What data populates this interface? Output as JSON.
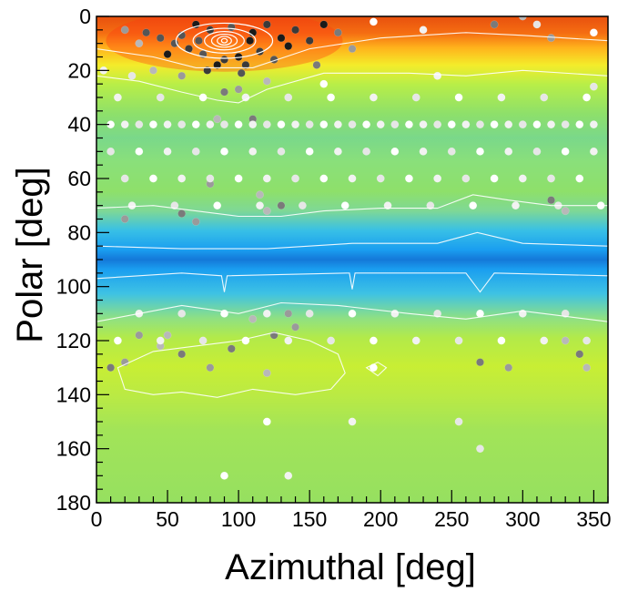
{
  "chart_data": {
    "type": "heatmap",
    "title": "",
    "xlabel": "Azimuthal [deg]",
    "ylabel": "Polar [deg]",
    "xlim": [
      0,
      360
    ],
    "ylim": [
      0,
      180
    ],
    "y_axis_inverted": true,
    "grid": false,
    "legend": "none",
    "x_ticks": [
      0,
      50,
      100,
      150,
      200,
      250,
      300,
      350
    ],
    "y_ticks": [
      0,
      20,
      40,
      60,
      80,
      100,
      120,
      140,
      160,
      180
    ],
    "colormap_bands": [
      {
        "polar_range": [
          0,
          8
        ],
        "level": "highest",
        "color": "#f05a10"
      },
      {
        "polar_range": [
          8,
          20
        ],
        "level": "high",
        "color": "#ffcf1a"
      },
      {
        "polar_range": [
          20,
          72
        ],
        "level": "medium",
        "color": "#8ee06a"
      },
      {
        "polar_range": [
          72,
          112
        ],
        "level": "low",
        "color": "#1aa6ee"
      },
      {
        "polar_range": [
          112,
          150
        ],
        "level": "medium-high",
        "color": "#c6ee3a"
      },
      {
        "polar_range": [
          150,
          180
        ],
        "level": "medium",
        "color": "#9ae25c"
      }
    ],
    "hotspot": {
      "azimuthal": 90,
      "polar": 9
    },
    "scatter_series": [
      {
        "shade": "dark",
        "points": [
          [
            70,
            3
          ],
          [
            80,
            5
          ],
          [
            95,
            4
          ],
          [
            110,
            6
          ],
          [
            120,
            3
          ],
          [
            60,
            7
          ],
          [
            130,
            8
          ],
          [
            65,
            12
          ],
          [
            75,
            14
          ],
          [
            100,
            15
          ],
          [
            115,
            13
          ],
          [
            125,
            16
          ],
          [
            85,
            18
          ],
          [
            105,
            18
          ],
          [
            55,
            10
          ],
          [
            135,
            11
          ],
          [
            140,
            5
          ],
          [
            45,
            8
          ],
          [
            50,
            14
          ],
          [
            150,
            9
          ],
          [
            35,
            6
          ],
          [
            160,
            3
          ],
          [
            90,
            16
          ],
          [
            72,
            9
          ],
          [
            108,
            9
          ],
          [
            78,
            20
          ],
          [
            102,
            21
          ]
        ]
      },
      {
        "shade": "grey",
        "points": [
          [
            20,
            5
          ],
          [
            30,
            10
          ],
          [
            170,
            6
          ],
          [
            180,
            12
          ],
          [
            40,
            20
          ],
          [
            155,
            18
          ],
          [
            60,
            22
          ],
          [
            120,
            24
          ],
          [
            90,
            28
          ],
          [
            100,
            27
          ],
          [
            85,
            38
          ],
          [
            110,
            38
          ],
          [
            80,
            62
          ],
          [
            115,
            66
          ],
          [
            60,
            73
          ],
          [
            70,
            76
          ],
          [
            120,
            72
          ],
          [
            130,
            70
          ],
          [
            20,
            75
          ],
          [
            330,
            72
          ],
          [
            320,
            68
          ],
          [
            30,
            118
          ],
          [
            45,
            122
          ],
          [
            60,
            125
          ],
          [
            20,
            128
          ],
          [
            110,
            112
          ],
          [
            125,
            118
          ],
          [
            140,
            115
          ],
          [
            330,
            120
          ],
          [
            340,
            125
          ],
          [
            80,
            130
          ],
          [
            120,
            132
          ],
          [
            270,
            128
          ],
          [
            290,
            130
          ],
          [
            300,
            0
          ],
          [
            280,
            3
          ],
          [
            320,
            8
          ],
          [
            50,
            118
          ],
          [
            95,
            123
          ],
          [
            135,
            110
          ],
          [
            345,
            130
          ],
          [
            10,
            130
          ]
        ]
      },
      {
        "shade": "white",
        "points": [
          [
            10,
            40
          ],
          [
            20,
            40
          ],
          [
            30,
            40
          ],
          [
            40,
            40
          ],
          [
            50,
            40
          ],
          [
            60,
            40
          ],
          [
            70,
            40
          ],
          [
            80,
            40
          ],
          [
            90,
            40
          ],
          [
            100,
            40
          ],
          [
            110,
            40
          ],
          [
            120,
            40
          ],
          [
            130,
            40
          ],
          [
            140,
            40
          ],
          [
            150,
            40
          ],
          [
            160,
            40
          ],
          [
            170,
            40
          ],
          [
            180,
            40
          ],
          [
            190,
            40
          ],
          [
            200,
            40
          ],
          [
            210,
            40
          ],
          [
            220,
            40
          ],
          [
            230,
            40
          ],
          [
            240,
            40
          ],
          [
            250,
            40
          ],
          [
            260,
            40
          ],
          [
            270,
            40
          ],
          [
            280,
            40
          ],
          [
            290,
            40
          ],
          [
            300,
            40
          ],
          [
            310,
            40
          ],
          [
            320,
            40
          ],
          [
            330,
            40
          ],
          [
            340,
            40
          ],
          [
            350,
            40
          ],
          [
            10,
            50
          ],
          [
            30,
            50
          ],
          [
            50,
            50
          ],
          [
            70,
            50
          ],
          [
            90,
            50
          ],
          [
            110,
            50
          ],
          [
            130,
            50
          ],
          [
            150,
            50
          ],
          [
            170,
            50
          ],
          [
            190,
            50
          ],
          [
            210,
            50
          ],
          [
            230,
            50
          ],
          [
            250,
            50
          ],
          [
            270,
            50
          ],
          [
            290,
            50
          ],
          [
            310,
            50
          ],
          [
            330,
            50
          ],
          [
            350,
            50
          ],
          [
            20,
            60
          ],
          [
            40,
            60
          ],
          [
            60,
            60
          ],
          [
            80,
            60
          ],
          [
            100,
            60
          ],
          [
            120,
            60
          ],
          [
            140,
            60
          ],
          [
            160,
            60
          ],
          [
            180,
            60
          ],
          [
            200,
            60
          ],
          [
            220,
            60
          ],
          [
            240,
            60
          ],
          [
            260,
            60
          ],
          [
            280,
            60
          ],
          [
            300,
            60
          ],
          [
            320,
            60
          ],
          [
            340,
            60
          ],
          [
            15,
            30
          ],
          [
            45,
            30
          ],
          [
            75,
            30
          ],
          [
            105,
            30
          ],
          [
            135,
            30
          ],
          [
            165,
            30
          ],
          [
            195,
            30
          ],
          [
            225,
            30
          ],
          [
            255,
            30
          ],
          [
            285,
            30
          ],
          [
            315,
            30
          ],
          [
            345,
            30
          ],
          [
            25,
            70
          ],
          [
            55,
            70
          ],
          [
            85,
            70
          ],
          [
            115,
            70
          ],
          [
            145,
            70
          ],
          [
            175,
            70
          ],
          [
            205,
            70
          ],
          [
            235,
            70
          ],
          [
            265,
            70
          ],
          [
            295,
            70
          ],
          [
            325,
            70
          ],
          [
            355,
            70
          ],
          [
            30,
            110
          ],
          [
            60,
            110
          ],
          [
            90,
            110
          ],
          [
            120,
            110
          ],
          [
            150,
            110
          ],
          [
            180,
            110
          ],
          [
            210,
            110
          ],
          [
            240,
            110
          ],
          [
            270,
            110
          ],
          [
            300,
            110
          ],
          [
            330,
            110
          ],
          [
            15,
            120
          ],
          [
            45,
            120
          ],
          [
            75,
            120
          ],
          [
            105,
            120
          ],
          [
            135,
            120
          ],
          [
            165,
            120
          ],
          [
            195,
            120
          ],
          [
            225,
            120
          ],
          [
            255,
            120
          ],
          [
            285,
            120
          ],
          [
            315,
            120
          ],
          [
            345,
            120
          ],
          [
            120,
            150
          ],
          [
            180,
            150
          ],
          [
            255,
            150
          ],
          [
            90,
            170
          ],
          [
            135,
            170
          ],
          [
            270,
            160
          ],
          [
            195,
            2
          ],
          [
            230,
            5
          ],
          [
            310,
            3
          ],
          [
            350,
            6
          ],
          [
            5,
            20
          ],
          [
            25,
            22
          ],
          [
            160,
            25
          ],
          [
            240,
            22
          ],
          [
            350,
            26
          ],
          [
            195,
            130
          ]
        ]
      }
    ],
    "contours": [
      {
        "name": "ring-inner",
        "kind": "ellipse",
        "center": [
          90,
          9
        ],
        "radius": [
          2,
          0.8
        ]
      },
      {
        "name": "ring-2",
        "kind": "ellipse",
        "center": [
          90,
          9
        ],
        "radius": [
          5,
          1.6
        ]
      },
      {
        "name": "ring-3",
        "kind": "ellipse",
        "center": [
          90,
          9
        ],
        "radius": [
          9,
          2.4
        ]
      },
      {
        "name": "ring-4",
        "kind": "ellipse",
        "center": [
          90,
          9
        ],
        "radius": [
          14,
          3.4
        ]
      },
      {
        "name": "ring-5",
        "kind": "ellipse",
        "center": [
          90,
          9
        ],
        "radius": [
          22,
          4.6
        ]
      },
      {
        "name": "ring-6",
        "kind": "ellipse",
        "center": [
          90,
          9
        ],
        "radius": [
          34,
          6.5
        ]
      },
      {
        "name": "upper-band-edge",
        "kind": "line",
        "points": [
          [
            0,
            12
          ],
          [
            40,
            15
          ],
          [
            70,
            19
          ],
          [
            110,
            19
          ],
          [
            150,
            12
          ],
          [
            200,
            8
          ],
          [
            260,
            6
          ],
          [
            300,
            7
          ],
          [
            360,
            9
          ]
        ]
      },
      {
        "name": "band-20",
        "kind": "line",
        "points": [
          [
            0,
            22
          ],
          [
            30,
            24
          ],
          [
            60,
            28
          ],
          [
            85,
            31
          ],
          [
            100,
            32
          ],
          [
            120,
            27
          ],
          [
            160,
            21
          ],
          [
            220,
            21
          ],
          [
            260,
            22
          ],
          [
            300,
            20
          ],
          [
            360,
            22
          ]
        ]
      },
      {
        "name": "band-72",
        "kind": "line",
        "points": [
          [
            0,
            71
          ],
          [
            40,
            70
          ],
          [
            70,
            72
          ],
          [
            100,
            74
          ],
          [
            130,
            74
          ],
          [
            160,
            72
          ],
          [
            200,
            71
          ],
          [
            240,
            71
          ],
          [
            265,
            66
          ],
          [
            290,
            68
          ],
          [
            320,
            70
          ],
          [
            360,
            70
          ]
        ]
      },
      {
        "name": "band-85",
        "kind": "line",
        "points": [
          [
            0,
            85
          ],
          [
            60,
            86
          ],
          [
            120,
            86
          ],
          [
            180,
            84
          ],
          [
            240,
            84
          ],
          [
            268,
            80
          ],
          [
            300,
            84
          ],
          [
            360,
            85
          ]
        ]
      },
      {
        "name": "band-95",
        "kind": "line",
        "points": [
          [
            0,
            97
          ],
          [
            60,
            95
          ],
          [
            88,
            96
          ],
          [
            90,
            102
          ],
          [
            92,
            96
          ],
          [
            178,
            95
          ],
          [
            180,
            101
          ],
          [
            182,
            95
          ],
          [
            260,
            95
          ],
          [
            270,
            102
          ],
          [
            280,
            95
          ],
          [
            360,
            96
          ]
        ]
      },
      {
        "name": "band-112",
        "kind": "line",
        "points": [
          [
            0,
            113
          ],
          [
            30,
            110
          ],
          [
            60,
            107
          ],
          [
            100,
            110
          ],
          [
            130,
            106
          ],
          [
            170,
            107
          ],
          [
            220,
            110
          ],
          [
            260,
            112
          ],
          [
            300,
            109
          ],
          [
            330,
            111
          ],
          [
            360,
            113
          ]
        ]
      },
      {
        "name": "blob-lower-left",
        "kind": "closed",
        "points": [
          [
            15,
            130
          ],
          [
            40,
            124
          ],
          [
            70,
            122
          ],
          [
            100,
            120
          ],
          [
            125,
            117
          ],
          [
            150,
            120
          ],
          [
            170,
            125
          ],
          [
            175,
            132
          ],
          [
            165,
            138
          ],
          [
            140,
            140
          ],
          [
            110,
            138
          ],
          [
            85,
            141
          ],
          [
            60,
            139
          ],
          [
            40,
            140
          ],
          [
            20,
            138
          ]
        ]
      },
      {
        "name": "blob-small",
        "kind": "closed",
        "points": [
          [
            190,
            130
          ],
          [
            198,
            128
          ],
          [
            204,
            130
          ],
          [
            198,
            133
          ]
        ]
      }
    ]
  }
}
